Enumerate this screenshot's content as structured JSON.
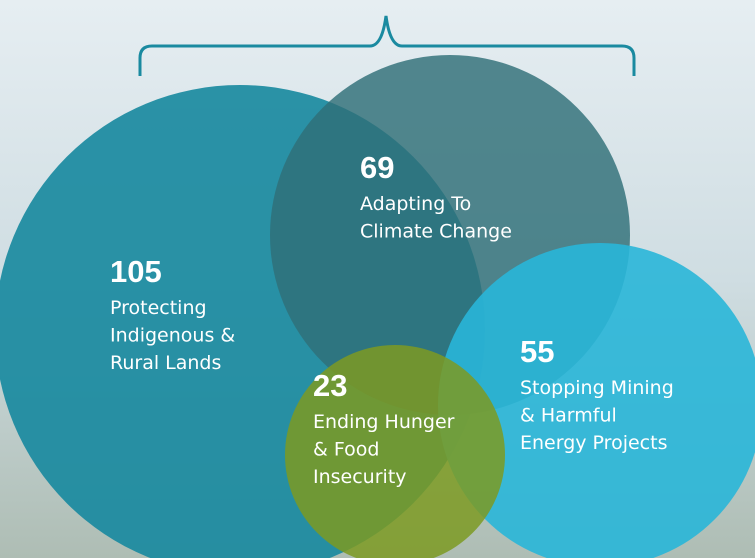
{
  "nodes": [
    {
      "value": 105,
      "lines": [
        "Protecting",
        "Indigenous &",
        "Rural Lands"
      ]
    },
    {
      "value": 69,
      "lines": [
        "Adapting To",
        "Climate Change"
      ]
    },
    {
      "value": 23,
      "lines": [
        "Ending Hunger",
        "& Food",
        "Insecurity"
      ]
    },
    {
      "value": 55,
      "lines": [
        "Stopping Mining",
        "& Harmful",
        "Energy Projects"
      ]
    }
  ]
}
